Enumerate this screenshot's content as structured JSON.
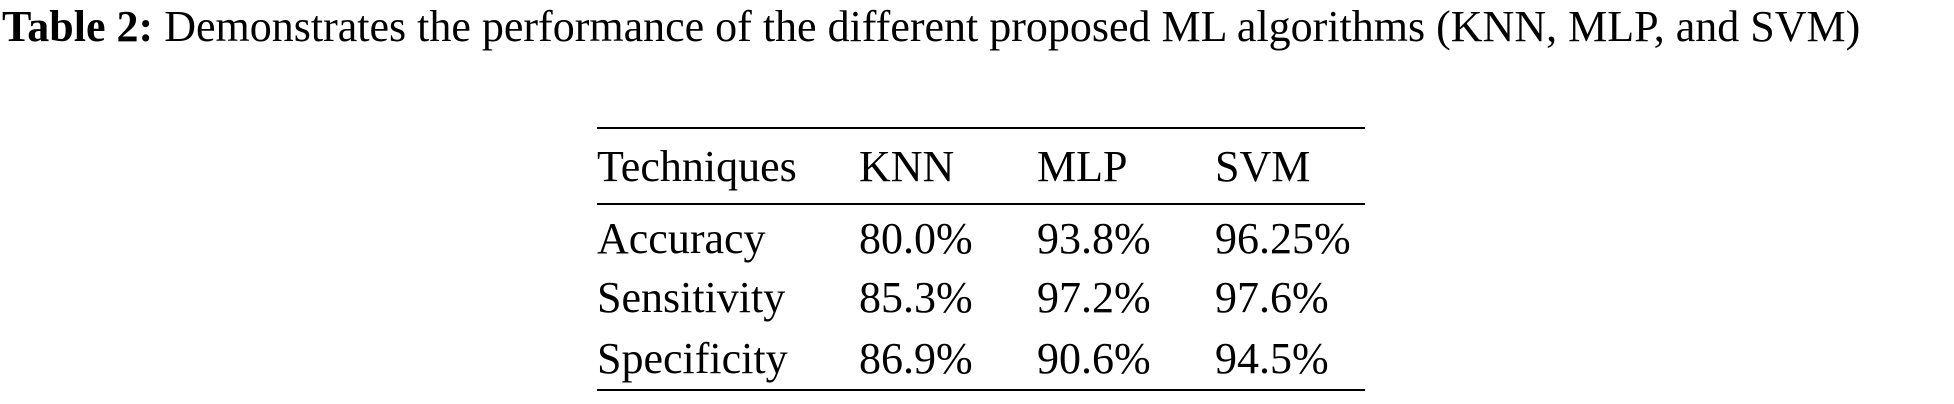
{
  "caption": {
    "label": "Table 2:",
    "text": "Demonstrates the performance of the different proposed ML algorithms (KNN, MLP, and SVM)"
  },
  "table": {
    "header": [
      "Techniques",
      "KNN",
      "MLP",
      "SVM"
    ],
    "rows": [
      [
        "Accuracy",
        "80.0%",
        "93.8%",
        "96.25%"
      ],
      [
        "Sensitivity",
        "85.3%",
        "97.2%",
        "97.6%"
      ],
      [
        "Specificity",
        "86.9%",
        "90.6%",
        "94.5%"
      ]
    ]
  }
}
